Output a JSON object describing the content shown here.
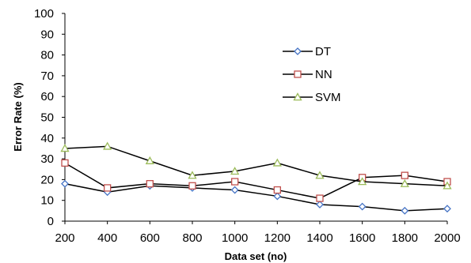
{
  "chart_data": {
    "type": "line",
    "title": "",
    "xlabel": "Data set (no)",
    "ylabel": "Error Rate (%)",
    "x": [
      200,
      400,
      600,
      800,
      1000,
      1200,
      1400,
      1600,
      1800,
      2000
    ],
    "xlim": [
      200,
      2000
    ],
    "ylim": [
      0,
      100
    ],
    "yticks": [
      0,
      10,
      20,
      30,
      40,
      50,
      60,
      70,
      80,
      90,
      100
    ],
    "grid": false,
    "legend_position": "right",
    "series": [
      {
        "name": "DT",
        "marker": "diamond",
        "marker_color": "#4472C4",
        "line_color": "#000000",
        "values": [
          18,
          14,
          17,
          16,
          15,
          12,
          8,
          7,
          5,
          6
        ]
      },
      {
        "name": "NN",
        "marker": "square",
        "marker_color": "#C0504D",
        "line_color": "#000000",
        "values": [
          28,
          16,
          18,
          17,
          19,
          15,
          11,
          21,
          22,
          19
        ]
      },
      {
        "name": "SVM",
        "marker": "triangle",
        "marker_color": "#9BBB59",
        "line_color": "#000000",
        "values": [
          35,
          36,
          29,
          22,
          24,
          28,
          22,
          19,
          18,
          17
        ]
      }
    ]
  }
}
